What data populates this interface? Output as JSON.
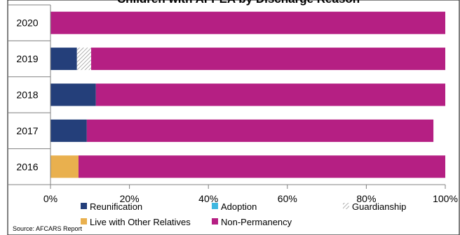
{
  "chart_data": {
    "type": "bar",
    "orientation": "horizontal",
    "stacked": true,
    "title": "Children with AFPEA by Discharge Reason",
    "categories": [
      "2020",
      "2019",
      "2018",
      "2017",
      "2016"
    ],
    "series": [
      {
        "name": "Reunification",
        "color": "#243F7A",
        "values": [
          0,
          6.7,
          11.5,
          9.2,
          0
        ]
      },
      {
        "name": "Adoption",
        "color": "#3FB7E0",
        "values": [
          0,
          0,
          0,
          0,
          0
        ]
      },
      {
        "name": "Guardianship",
        "color": "#D9D9D9",
        "pattern": "diagonal-hatch",
        "values": [
          0,
          3.6,
          0,
          0,
          0
        ]
      },
      {
        "name": "Live with Other Relatives",
        "color": "#E9B04E",
        "values": [
          0,
          0,
          0,
          0,
          7.1
        ]
      },
      {
        "name": "Non-Permanency",
        "color": "#B51F83",
        "values": [
          100,
          89.7,
          88.5,
          87.8,
          92.9
        ]
      }
    ],
    "x_ticks": [
      "0%",
      "20%",
      "40%",
      "60%",
      "80%",
      "100%"
    ],
    "xlim": [
      0,
      100
    ],
    "grid": false,
    "legend_position": "bottom"
  },
  "source": "Source: AFCARS Report"
}
